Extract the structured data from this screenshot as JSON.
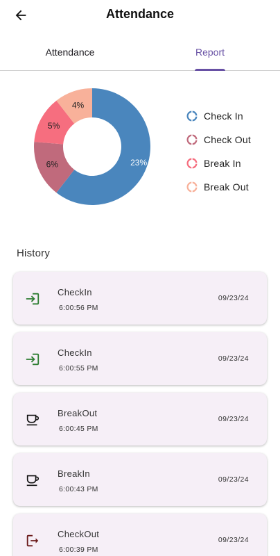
{
  "header": {
    "title": "Attendance",
    "back_icon": "arrow-back-icon"
  },
  "tabs": [
    {
      "label": "Attendance",
      "active": false
    },
    {
      "label": "Report",
      "active": true
    }
  ],
  "colors": {
    "accent": "#6750a4",
    "check_in": "#4a86bd",
    "check_out": "#c06a7c",
    "break_in": "#f66e7f",
    "break_out": "#f8b19a",
    "card_bg": "#f6eff7",
    "icon_in": "#2e7d32",
    "icon_out": "#6b1b1b"
  },
  "chart_data": {
    "type": "pie",
    "style": "donut",
    "categories": [
      "Check In",
      "Check Out",
      "Break In",
      "Break Out"
    ],
    "values": [
      23,
      6,
      5,
      4
    ],
    "slice_labels": [
      "23%",
      "6%",
      "5%",
      "4%"
    ],
    "legend_placement": "right"
  },
  "legend": [
    {
      "label": "Check In"
    },
    {
      "label": "Check Out"
    },
    {
      "label": "Break In"
    },
    {
      "label": "Break Out"
    }
  ],
  "history": {
    "title": "History",
    "items": [
      {
        "type": "CheckIn",
        "time": "6:00:56 PM",
        "date": "09/23/24",
        "icon": "login-icon"
      },
      {
        "type": "CheckIn",
        "time": "6:00:55 PM",
        "date": "09/23/24",
        "icon": "login-icon"
      },
      {
        "type": "BreakOut",
        "time": "6:00:45 PM",
        "date": "09/23/24",
        "icon": "coffee-cup-icon"
      },
      {
        "type": "BreakIn",
        "time": "6:00:43 PM",
        "date": "09/23/24",
        "icon": "coffee-cup-icon"
      },
      {
        "type": "CheckOut",
        "time": "6:00:39 PM",
        "date": "09/23/24",
        "icon": "logout-icon"
      }
    ]
  }
}
